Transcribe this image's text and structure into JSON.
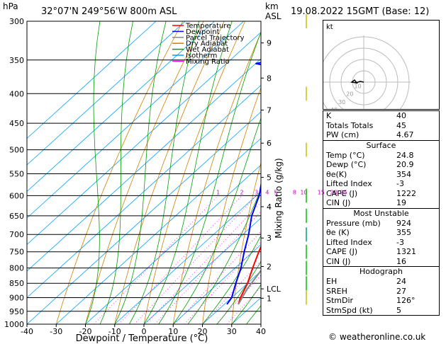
{
  "header": {
    "hpa_unit": "hPa",
    "location": "32°07'N  249°56'W  800m  ASL",
    "km_unit": "km",
    "asl_unit": "ASL",
    "datetime": "19.08.2022  15GMT  (Base: 12)"
  },
  "legend": [
    {
      "label": "Temperature",
      "color": "#ff0000"
    },
    {
      "label": "Dewpoint",
      "color": "#0000ff"
    },
    {
      "label": "Parcel Trajectory",
      "color": "#888888"
    },
    {
      "label": "Dry Adiabat",
      "color": "#d08000"
    },
    {
      "label": "Wet Adiabat",
      "color": "#00a000"
    },
    {
      "label": "Isotherm",
      "color": "#00a0ff"
    },
    {
      "label": "Mixing Ratio",
      "color": "#ff00ff"
    }
  ],
  "chart_data": {
    "type": "line",
    "title": "",
    "xlabel": "Dewpoint / Temperature (°C)",
    "ylabel_right": "Mixing Ratio (g/kg)",
    "xlim": [
      -40,
      40
    ],
    "x_ticks": [
      "-40",
      "-30",
      "-20",
      "-10",
      "0",
      "10",
      "20",
      "30",
      "40"
    ],
    "pressure_levels": [
      "300",
      "350",
      "400",
      "450",
      "500",
      "550",
      "600",
      "650",
      "700",
      "750",
      "800",
      "850",
      "900",
      "950",
      "1000"
    ],
    "km_ticks": [
      {
        "label": "9",
        "p": 327
      },
      {
        "label": "8",
        "p": 376
      },
      {
        "label": "7",
        "p": 427
      },
      {
        "label": "6",
        "p": 487
      },
      {
        "label": "5",
        "p": 558
      },
      {
        "label": "4",
        "p": 627
      },
      {
        "label": "3",
        "p": 710
      },
      {
        "label": "2",
        "p": 795
      },
      {
        "label": "LCL",
        "p": 869
      },
      {
        "label": "1",
        "p": 902
      }
    ],
    "mixing_ratio_labels": [
      "1",
      "2",
      "3",
      "4",
      "5",
      "8",
      "10",
      "15",
      "20",
      "25"
    ],
    "series": [
      {
        "name": "Temperature",
        "color": "#ff0000",
        "points": [
          [
            924,
            24.8
          ],
          [
            900,
            23
          ],
          [
            850,
            20
          ],
          [
            800,
            16
          ],
          [
            750,
            12
          ],
          [
            700,
            8
          ],
          [
            650,
            4
          ],
          [
            600,
            0
          ],
          [
            550,
            -5
          ],
          [
            500,
            -10
          ],
          [
            450,
            -16
          ],
          [
            400,
            -24
          ],
          [
            370,
            -29
          ],
          [
            350,
            -32
          ]
        ]
      },
      {
        "name": "Dewpoint",
        "color": "#0000ff",
        "points": [
          [
            924,
            20.9
          ],
          [
            900,
            20
          ],
          [
            850,
            16
          ],
          [
            800,
            12
          ],
          [
            750,
            7
          ],
          [
            700,
            2
          ],
          [
            650,
            -4
          ],
          [
            610,
            -8
          ],
          [
            600,
            -9
          ],
          [
            550,
            -16
          ],
          [
            500,
            -22
          ],
          [
            460,
            -28
          ],
          [
            430,
            -36
          ],
          [
            410,
            -33
          ],
          [
            370,
            -38
          ],
          [
            355,
            -60
          ],
          [
            345,
            -50
          ],
          [
            330,
            -50
          ],
          [
            320,
            -52
          ],
          [
            310,
            -52
          ],
          [
            302,
            -48
          ]
        ]
      },
      {
        "name": "Parcel Trajectory",
        "color": "#888888",
        "points": [
          [
            924,
            24.8
          ],
          [
            869,
            22.0
          ],
          [
            800,
            19.5
          ],
          [
            750,
            17.5
          ],
          [
            700,
            15
          ],
          [
            650,
            12
          ],
          [
            600,
            8.5
          ],
          [
            550,
            5
          ],
          [
            500,
            0.5
          ],
          [
            450,
            -5
          ],
          [
            400,
            -11
          ],
          [
            350,
            -19
          ],
          [
            300,
            -28
          ]
        ]
      }
    ]
  },
  "hodograph": {
    "unit_label": "kt",
    "ring_labels": [
      "10",
      "20",
      "30",
      "40"
    ]
  },
  "indices": [
    {
      "label": "K",
      "value": "40"
    },
    {
      "label": "Totals Totals",
      "value": "45"
    },
    {
      "label": "PW (cm)",
      "value": "4.67"
    }
  ],
  "surface": {
    "title": "Surface",
    "rows": [
      {
        "label": "Temp (°C)",
        "value": "24.8"
      },
      {
        "label": "Dewp (°C)",
        "value": "20.9"
      },
      {
        "label": "θe(K)",
        "value": "354"
      },
      {
        "label": "Lifted Index",
        "value": "-3"
      },
      {
        "label": "CAPE (J)",
        "value": "1222"
      },
      {
        "label": "CIN (J)",
        "value": "19"
      }
    ]
  },
  "most_unstable": {
    "title": "Most Unstable",
    "rows": [
      {
        "label": "Pressure (mb)",
        "value": "924"
      },
      {
        "label": "θe (K)",
        "value": "355"
      },
      {
        "label": "Lifted Index",
        "value": "-3"
      },
      {
        "label": "CAPE (J)",
        "value": "1321"
      },
      {
        "label": "CIN (J)",
        "value": "16"
      }
    ]
  },
  "hodograph_table": {
    "title": "Hodograph",
    "rows": [
      {
        "label": "EH",
        "value": "24"
      },
      {
        "label": "SREH",
        "value": "27"
      },
      {
        "label": "StmDir",
        "value": "126°"
      },
      {
        "label": "StmSpd (kt)",
        "value": "5"
      }
    ]
  },
  "footer": {
    "credit": "© weatheronline.co.uk"
  }
}
